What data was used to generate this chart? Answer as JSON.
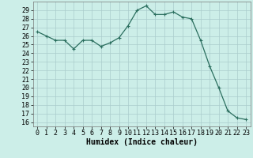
{
  "x": [
    0,
    1,
    2,
    3,
    4,
    5,
    6,
    7,
    8,
    9,
    10,
    11,
    12,
    13,
    14,
    15,
    16,
    17,
    18,
    19,
    20,
    21,
    22,
    23
  ],
  "y": [
    26.5,
    26.0,
    25.5,
    25.5,
    24.5,
    25.5,
    25.5,
    24.8,
    25.2,
    25.8,
    27.2,
    29.0,
    29.5,
    28.5,
    28.5,
    28.8,
    28.2,
    28.0,
    25.5,
    22.5,
    20.0,
    17.3,
    16.5,
    16.3
  ],
  "line_color": "#2a6e5e",
  "marker": "+",
  "marker_size": 3,
  "marker_linewidth": 0.8,
  "linewidth": 0.9,
  "background_color": "#cceee8",
  "grid_color": "#aacccc",
  "xlabel": "Humidex (Indice chaleur)",
  "ylim": [
    15.5,
    30.0
  ],
  "xlim": [
    -0.5,
    23.5
  ],
  "yticks": [
    16,
    17,
    18,
    19,
    20,
    21,
    22,
    23,
    24,
    25,
    26,
    27,
    28,
    29
  ],
  "xticks": [
    0,
    1,
    2,
    3,
    4,
    5,
    6,
    7,
    8,
    9,
    10,
    11,
    12,
    13,
    14,
    15,
    16,
    17,
    18,
    19,
    20,
    21,
    22,
    23
  ],
  "xlabel_fontsize": 7,
  "tick_fontsize": 6
}
